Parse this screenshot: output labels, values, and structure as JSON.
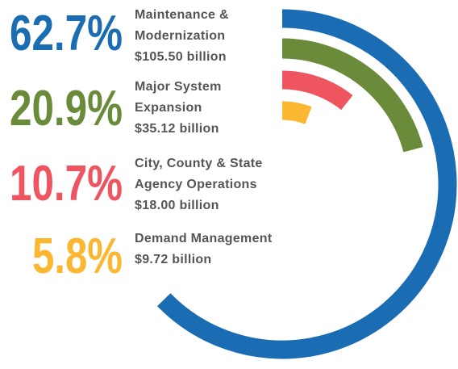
{
  "chart_data": {
    "type": "radial-bar",
    "series": [
      {
        "name": "Maintenance & Modernization",
        "amount": "$105.50 billion",
        "color": "#1b6db3",
        "value": 62.7,
        "value_label": "62.7%"
      },
      {
        "name": "Major System Expansion",
        "amount": "$35.12 billion",
        "color": "#6a8b39",
        "value": 20.9,
        "value_label": "20.9%"
      },
      {
        "name": "City, County & State Agency Operations",
        "amount": "$18.00 billion",
        "color": "#ee5560",
        "value": 10.7,
        "value_label": "10.7%"
      },
      {
        "name": "Demand Management",
        "amount": "$9.72 billion",
        "color": "#fbb731",
        "value": 5.8,
        "value_label": "5.8%"
      }
    ]
  }
}
